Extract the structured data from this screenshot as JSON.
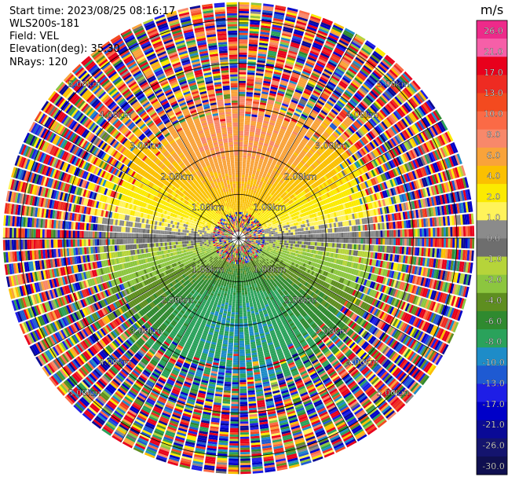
{
  "header": {
    "start_time": "Start time: 2023/08/25 08:16:17",
    "site": "WLS200s-181",
    "field": "Field: VEL",
    "elevation": "Elevation(deg): 35.30",
    "nrays": "NRays: 120"
  },
  "colorbar": {
    "unit": "m/s",
    "ticks": [
      "26.0",
      "21.0",
      "17.0",
      "13.0",
      "10.0",
      "8.0",
      "6.0",
      "4.0",
      "2.0",
      "1.0",
      "0.0",
      "-1.0",
      "-2.0",
      "-4.0",
      "-6.0",
      "-8.0",
      "-10.0",
      "-13.0",
      "-17.0",
      "-21.0",
      "-26.0",
      "-30.0"
    ],
    "colors": [
      "#ee2a8a",
      "#f65fa8",
      "#e8001c",
      "#ee2b22",
      "#f34a1f",
      "#fb6a46",
      "#f8886a",
      "#f9a33a",
      "#fbc000",
      "#fbea00",
      "#fff35a",
      "#8b8b8b",
      "#6e6e6e",
      "#b6d43a",
      "#8cc63f",
      "#5e8e20",
      "#2f8a2f",
      "#2aa25b",
      "#1e8cc8",
      "#1e5ad2",
      "#1e1ee6",
      "#0000c8",
      "#0a0a96",
      "#14146e",
      "#0f0f50"
    ]
  },
  "chart_data": {
    "type": "ppi",
    "field": "VEL",
    "unit": "m/s",
    "elevation_deg": 35.3,
    "nrays": 120,
    "range_ring_labels": [
      "1.00km",
      "2.00km",
      "3.00km",
      "4.00km",
      "5.00km"
    ],
    "range_rings_km": [
      1,
      2,
      3,
      4,
      5
    ],
    "max_range_km": 5.4,
    "velocity_pattern": {
      "description_values": "receding (positive) to the north, approaching (negative) to the south",
      "north_peak": 8.0,
      "south_peak": -10.0,
      "near_zero_band_deg": [
        80,
        100,
        260,
        280
      ]
    }
  }
}
